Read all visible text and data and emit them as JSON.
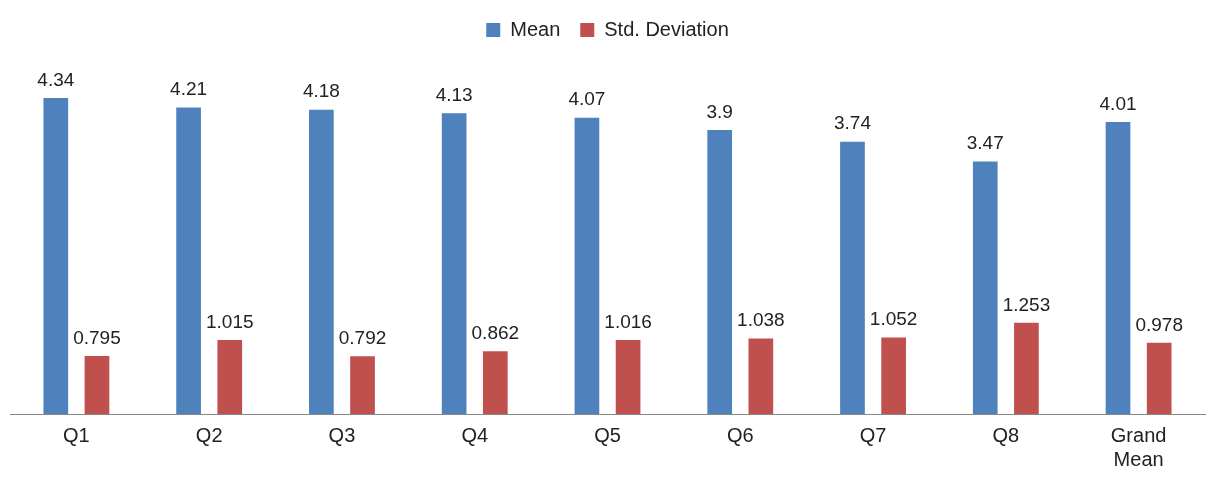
{
  "chart_data": {
    "type": "bar",
    "categories": [
      "Q1",
      "Q2",
      "Q3",
      "Q4",
      "Q5",
      "Q6",
      "Q7",
      "Q8",
      "Grand Mean"
    ],
    "series": [
      {
        "name": "Mean",
        "color": "#4f81bd",
        "values": [
          4.34,
          4.21,
          4.18,
          4.13,
          4.07,
          3.9,
          3.74,
          3.47,
          4.01
        ]
      },
      {
        "name": "Std. Deviation",
        "color": "#c0504d",
        "values": [
          0.795,
          1.015,
          0.792,
          0.862,
          1.016,
          1.038,
          1.052,
          1.253,
          0.978
        ]
      }
    ],
    "data_labels": true,
    "legend": "top",
    "grid": false,
    "tick_labels": "x"
  }
}
